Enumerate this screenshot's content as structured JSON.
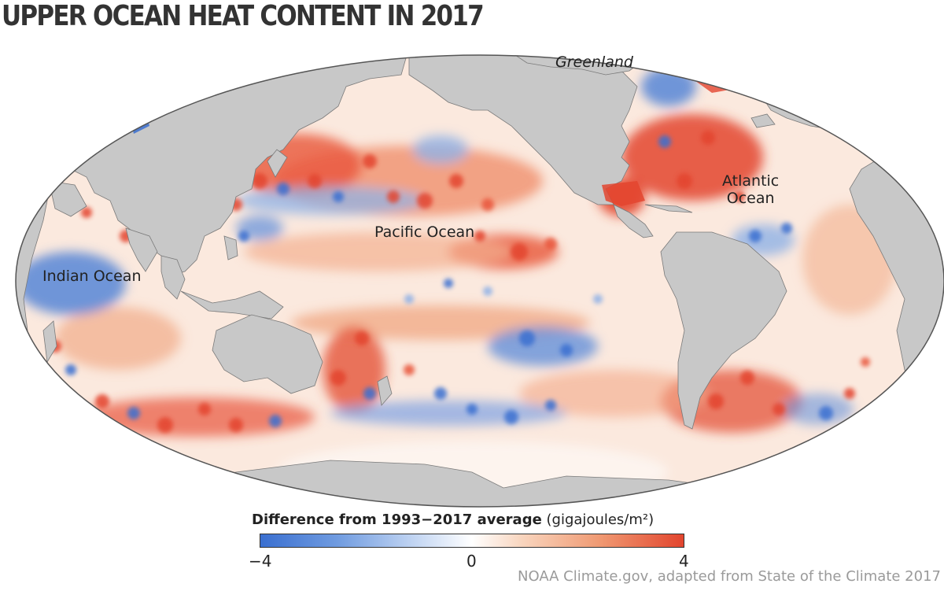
{
  "title": "UPPER OCEAN HEAT CONTENT IN 2017",
  "labels": {
    "greenland": "Greenland",
    "atlantic_line1": "Atlantic",
    "atlantic_line2": "Ocean",
    "pacific": "Pacific Ocean",
    "indian": "Indian Ocean"
  },
  "legend": {
    "title_bold": "Difference from 1993−2017 average",
    "title_unit": "(gigajoules/m²)",
    "ticks": [
      "−4",
      "0",
      "4"
    ],
    "range": [
      -4,
      4
    ],
    "colors": {
      "negative": "#3a6fd0",
      "neutral": "#ffffff",
      "positive": "#e2452e"
    }
  },
  "credit": "NOAA Climate.gov, adapted from State of the Climate 2017",
  "colors": {
    "land": "#c8c8c8",
    "land_border": "#7a7a7a",
    "ocean_base": "#fbe9de"
  }
}
